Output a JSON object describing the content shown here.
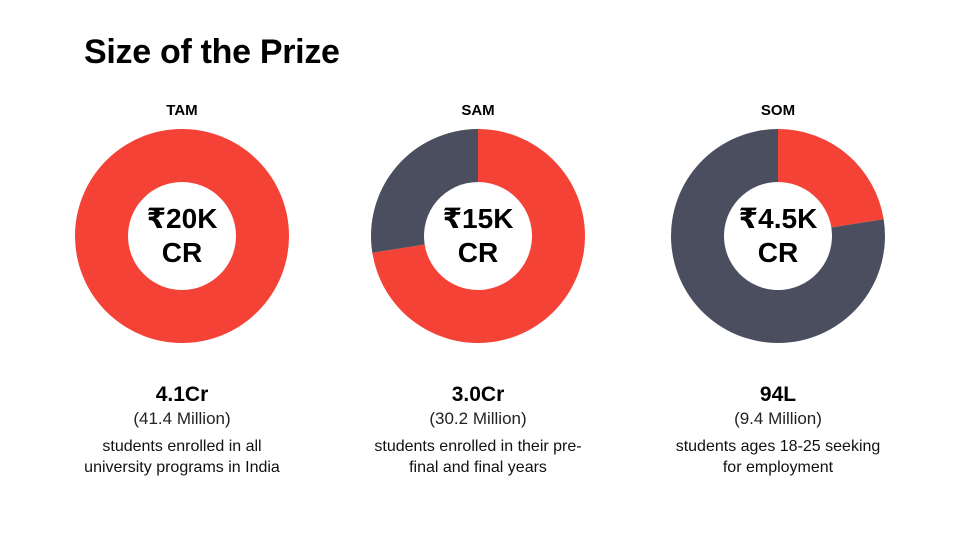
{
  "title": "Size of the Prize",
  "colors": {
    "red": "#f44336",
    "slate": "#4a4e5e"
  },
  "chart_data": [
    {
      "type": "pie",
      "label": "TAM",
      "center_line1": "₹20K",
      "center_line2": "CR",
      "slices": [
        {
          "color": "#f44336",
          "value": 100
        }
      ],
      "stat": "4.1Cr",
      "stat_sub": "(41.4 Million)",
      "description": "students enrolled in all university programs in India"
    },
    {
      "type": "pie",
      "label": "SAM",
      "center_line1": "₹15K",
      "center_line2": "CR",
      "slices": [
        {
          "color": "#f44336",
          "value": 72.5
        },
        {
          "color": "#4a4e5e",
          "value": 27.5
        }
      ],
      "stat": "3.0Cr",
      "stat_sub": "(30.2 Million)",
      "description": "students enrolled in their pre-final and final years"
    },
    {
      "type": "pie",
      "label": "SOM",
      "center_line1": "₹4.5K",
      "center_line2": "CR",
      "slices": [
        {
          "color": "#f44336",
          "value": 22.5
        },
        {
          "color": "#4a4e5e",
          "value": 77.5
        }
      ],
      "stat": "94L",
      "stat_sub": "(9.4 Million)",
      "description": "students ages 18-25 seeking for employment"
    }
  ]
}
